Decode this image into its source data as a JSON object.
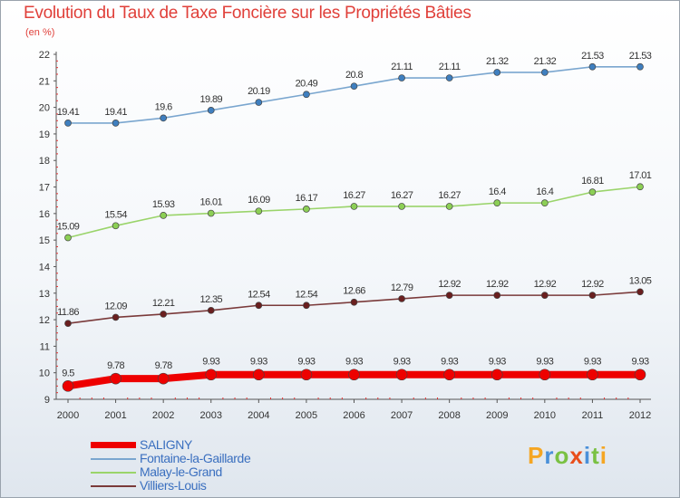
{
  "header": {
    "title": "Evolution du Taux de Taxe Foncière sur les Propriétés Bâties",
    "subtitle": "(en %)"
  },
  "logo": {
    "text": "Proxiti",
    "colors": [
      "#f5a623",
      "#4a90d9",
      "#7ac143",
      "#e94e1b",
      "#4a90d9",
      "#7ac143",
      "#f5a623"
    ]
  },
  "chart_data": {
    "type": "line",
    "title": "Evolution du Taux de Taxe Foncière sur les Propriétés Bâties",
    "ylabel": "(en %)",
    "xlabel": "",
    "ylim": [
      9,
      22
    ],
    "grid": false,
    "legend_position": "bottom-left",
    "categories": [
      "2000",
      "2001",
      "2002",
      "2003",
      "2004",
      "2005",
      "2006",
      "2007",
      "2008",
      "2009",
      "2010",
      "2011",
      "2012"
    ],
    "y_ticks": [
      "9",
      "10",
      "11",
      "12",
      "13",
      "14",
      "15",
      "16",
      "17",
      "18",
      "19",
      "20",
      "21",
      "22"
    ],
    "series": [
      {
        "name": "SALIGNY",
        "color": "#ee0000",
        "marker": "#ee0000",
        "thick": true,
        "values": [
          9.5,
          9.78,
          9.78,
          9.93,
          9.93,
          9.93,
          9.93,
          9.93,
          9.93,
          9.93,
          9.93,
          9.93,
          9.93
        ],
        "labels": [
          "9.5",
          "9.78",
          "9.78",
          "9.93",
          "9.93",
          "9.93",
          "9.93",
          "9.93",
          "9.93",
          "9.93",
          "9.93",
          "9.93",
          "9.93"
        ]
      },
      {
        "name": "Fontaine-la-Gaillarde",
        "color": "#7aa6cf",
        "marker": "#3f7fbf",
        "thick": false,
        "values": [
          19.41,
          19.41,
          19.6,
          19.89,
          20.19,
          20.49,
          20.8,
          21.11,
          21.11,
          21.32,
          21.32,
          21.53,
          21.53
        ],
        "labels": [
          "19.41",
          "19.41",
          "19.6",
          "19.89",
          "20.19",
          "20.49",
          "20.8",
          "21.11",
          "21.11",
          "21.32",
          "21.32",
          "21.53",
          "21.53"
        ]
      },
      {
        "name": "Malay-le-Grand",
        "color": "#9ad46a",
        "marker": "#8ccf55",
        "thick": false,
        "values": [
          15.09,
          15.54,
          15.93,
          16.01,
          16.09,
          16.17,
          16.27,
          16.27,
          16.27,
          16.4,
          16.4,
          16.81,
          17.01
        ],
        "labels": [
          "15.09",
          "15.54",
          "15.93",
          "16.01",
          "16.09",
          "16.17",
          "16.27",
          "16.27",
          "16.27",
          "16.4",
          "16.4",
          "16.81",
          "17.01"
        ]
      },
      {
        "name": "Villiers-Louis",
        "color": "#7a3a3a",
        "marker": "#6a1f1f",
        "thick": false,
        "values": [
          11.86,
          12.09,
          12.21,
          12.35,
          12.54,
          12.54,
          12.66,
          12.79,
          12.92,
          12.92,
          12.92,
          12.92,
          13.05
        ],
        "labels": [
          "11.86",
          "12.09",
          "12.21",
          "12.35",
          "12.54",
          "12.54",
          "12.66",
          "12.79",
          "12.92",
          "12.92",
          "12.92",
          "12.92",
          "13.05"
        ]
      }
    ]
  }
}
